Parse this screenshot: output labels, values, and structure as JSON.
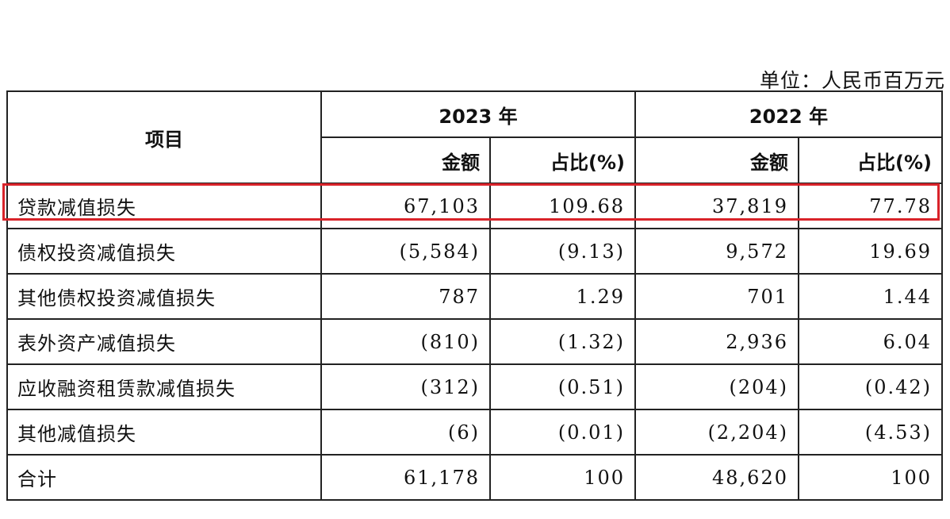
{
  "unit_label": "单位：人民币百万元",
  "header": {
    "item": "项目",
    "year_2023": "2023 年",
    "year_2022": "2022 年",
    "amount": "金额",
    "ratio": "占比(%)"
  },
  "rows": [
    {
      "name": "贷款减值损失",
      "a2023": "67,103",
      "r2023": "109.68",
      "a2022": "37,819",
      "r2022": "77.78",
      "highlighted": true
    },
    {
      "name": "债权投资减值损失",
      "a2023": "(5,584)",
      "r2023": "(9.13)",
      "a2022": "9,572",
      "r2022": "19.69"
    },
    {
      "name": "其他债权投资减值损失",
      "a2023": "787",
      "r2023": "1.29",
      "a2022": "701",
      "r2022": "1.44"
    },
    {
      "name": "表外资产减值损失",
      "a2023": "(810)",
      "r2023": "(1.32)",
      "a2022": "2,936",
      "r2022": "6.04"
    },
    {
      "name": "应收融资租赁款减值损失",
      "a2023": "(312)",
      "r2023": "(0.51)",
      "a2022": "(204)",
      "r2022": "(0.42)"
    },
    {
      "name": "其他减值损失",
      "a2023": "(6)",
      "r2023": "(0.01)",
      "a2022": "(2,204)",
      "r2022": "(4.53)"
    },
    {
      "name": "合计",
      "a2023": "61,178",
      "r2023": "100",
      "a2022": "48,620",
      "r2022": "100"
    }
  ],
  "colors": {
    "highlight_border": "#d9232a",
    "grid": "#222222"
  }
}
